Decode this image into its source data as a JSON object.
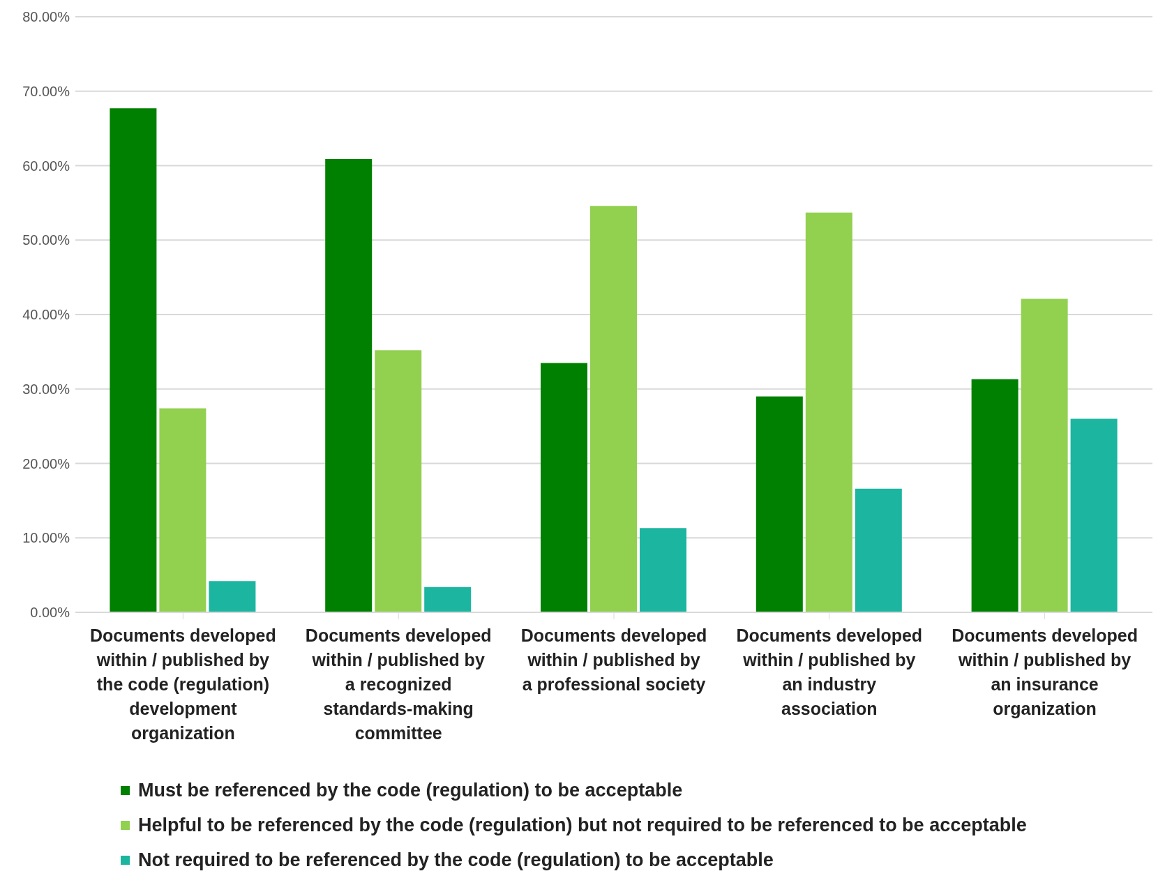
{
  "chart_data": {
    "type": "bar",
    "categories": [
      "Documents developed within / published by the code (regulation) development organization",
      "Documents developed within / published by a recognized standards-making committee",
      "Documents developed within / published by a professional society",
      "Documents developed within / published by an industry association",
      "Documents developed within / published by an insurance organization"
    ],
    "series": [
      {
        "name": "Must be referenced by the code (regulation) to be acceptable",
        "color": "#008000",
        "values": [
          67.7,
          60.9,
          33.5,
          29.0,
          31.3
        ]
      },
      {
        "name": "Helpful to be referenced by the code (regulation) but not required to be referenced to be acceptable",
        "color": "#92d050",
        "values": [
          27.4,
          35.2,
          54.6,
          53.7,
          42.1
        ]
      },
      {
        "name": "Not required to be referenced by the code (regulation) to be acceptable",
        "color": "#1bb5a0",
        "values": [
          4.2,
          3.4,
          11.3,
          16.6,
          26.0
        ]
      }
    ],
    "ylim": [
      0,
      80
    ],
    "yticks": [
      {
        "value": 0,
        "label": "0.00%"
      },
      {
        "value": 10,
        "label": "10.00%"
      },
      {
        "value": 20,
        "label": "20.00%"
      },
      {
        "value": 30,
        "label": "30.00%"
      },
      {
        "value": 40,
        "label": "40.00%"
      },
      {
        "value": 50,
        "label": "50.00%"
      },
      {
        "value": 60,
        "label": "60.00%"
      },
      {
        "value": 70,
        "label": "70.00%"
      },
      {
        "value": 80,
        "label": "80.00%"
      }
    ],
    "grid": "y",
    "legend": "bottom"
  }
}
